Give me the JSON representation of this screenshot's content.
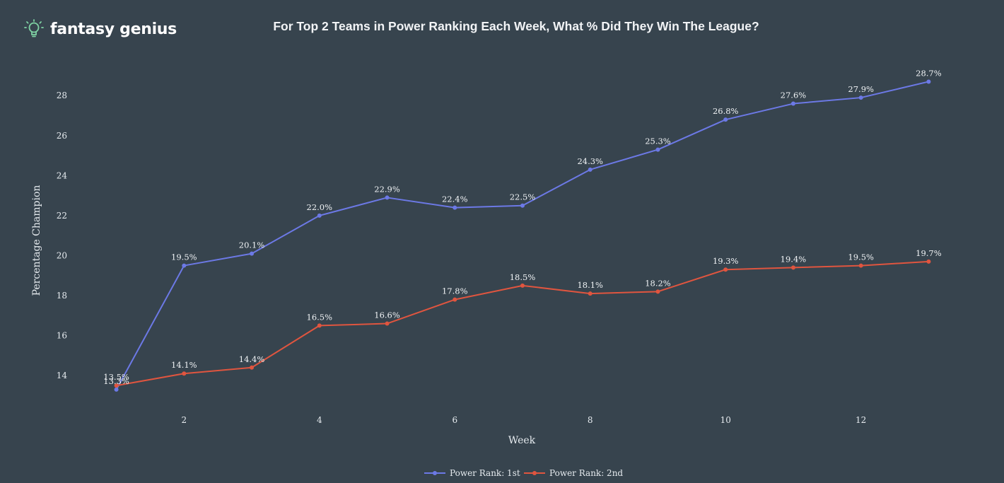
{
  "brand": {
    "name": "fantasy genius",
    "icon": "lightbulb-icon",
    "accent": "#7fd3a4"
  },
  "chart_data": {
    "type": "line",
    "title": "For Top 2 Teams in Power Ranking Each Week, What % Did They Win The League?",
    "xlabel": "Week",
    "ylabel": "Percentage Champion",
    "xlim": [
      0.9,
      13.1
    ],
    "ylim": [
      12.8,
      29.6
    ],
    "xticks": [
      2,
      4,
      6,
      8,
      10,
      12
    ],
    "yticks": [
      14,
      16,
      18,
      20,
      22,
      24,
      26,
      28
    ],
    "grid": false,
    "legend_position": "bottom-center",
    "x": [
      1,
      2,
      3,
      4,
      5,
      6,
      7,
      8,
      9,
      10,
      11,
      12,
      13
    ],
    "series": [
      {
        "name": "Power Rank: 1st",
        "color": "#6c79e6",
        "values": [
          13.3,
          19.5,
          20.1,
          22.0,
          22.9,
          22.4,
          22.5,
          24.3,
          25.3,
          26.8,
          27.6,
          27.9,
          28.7
        ],
        "labels": [
          "13.3%",
          "19.5%",
          "20.1%",
          "22.0%",
          "22.9%",
          "22.4%",
          "22.5%",
          "24.3%",
          "25.3%",
          "26.8%",
          "27.6%",
          "27.9%",
          "28.7%"
        ]
      },
      {
        "name": "Power Rank: 2nd",
        "color": "#e0553f",
        "values": [
          13.5,
          14.1,
          14.4,
          16.5,
          16.6,
          17.8,
          18.5,
          18.1,
          18.2,
          19.3,
          19.4,
          19.5,
          19.7
        ],
        "labels": [
          "13.5%",
          "14.1%",
          "14.4%",
          "16.5%",
          "16.6%",
          "17.8%",
          "18.5%",
          "18.1%",
          "18.2%",
          "19.3%",
          "19.4%",
          "19.5%",
          "19.7%"
        ]
      }
    ]
  }
}
